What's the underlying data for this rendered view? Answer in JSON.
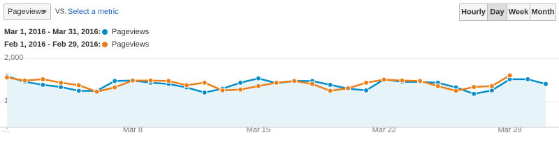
{
  "controls": {
    "metric": "Pageviews",
    "vs": "VS.",
    "select_metric": "Select a metric",
    "buttons": [
      "Hourly",
      "Day",
      "Week",
      "Month"
    ],
    "active_button": 1
  },
  "chart_data": {
    "type": "line",
    "categories": [
      "...",
      null,
      null,
      null,
      null,
      null,
      null,
      "Mar 8",
      null,
      null,
      null,
      null,
      null,
      null,
      "Mar 15",
      null,
      null,
      null,
      null,
      null,
      null,
      "Mar 22",
      null,
      null,
      null,
      null,
      null,
      null,
      "Mar 29",
      null,
      null
    ],
    "series": [
      {
        "name": "Pageviews",
        "range": "Mar 1, 2016 - Mar 31, 2016:",
        "color": "#058dc7",
        "area": "#e6f4fa",
        "values": [
          1590,
          1460,
          1390,
          1340,
          1250,
          1250,
          1480,
          1490,
          1440,
          1410,
          1330,
          1210,
          1300,
          1440,
          1540,
          1430,
          1480,
          1480,
          1390,
          1300,
          1260,
          1520,
          1460,
          1460,
          1440,
          1330,
          1180,
          1260,
          1520,
          1520,
          1410
        ]
      },
      {
        "name": "Pageviews",
        "range": "Feb 1, 2016 - Feb 29, 2016:",
        "color": "#ed7e17",
        "values": [
          1560,
          1490,
          1520,
          1440,
          1380,
          1230,
          1330,
          1490,
          1490,
          1480,
          1380,
          1440,
          1260,
          1280,
          1360,
          1440,
          1480,
          1410,
          1250,
          1310,
          1440,
          1510,
          1490,
          1480,
          1360,
          1250,
          1340,
          1360,
          1610,
          null,
          null
        ]
      }
    ],
    "ylim": [
      400,
      2150
    ],
    "yticks": [
      {
        "value": 1000,
        "label": "1,000"
      },
      {
        "value": 2000,
        "label": "2,000"
      }
    ],
    "grid": true
  }
}
